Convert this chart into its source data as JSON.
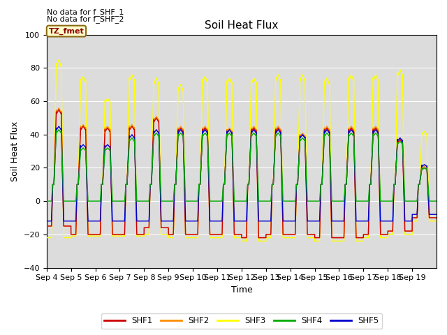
{
  "title": "Soil Heat Flux",
  "ylabel": "Soil Heat Flux",
  "xlabel": "Time",
  "ylim": [
    -40,
    100
  ],
  "annotation1": "No data for f_SHF_1",
  "annotation2": "No data for f_SHF_2",
  "tz_label": "TZ_fmet",
  "legend_labels": [
    "SHF1",
    "SHF2",
    "SHF3",
    "SHF4",
    "SHF5"
  ],
  "line_colors": [
    "#cc0000",
    "#ff8c00",
    "#ffff00",
    "#00aa00",
    "#0000cc"
  ],
  "background_color": "#dcdcdc",
  "xticklabels": [
    "Sep 4",
    "Sep 5",
    "Sep 6",
    "Sep 7",
    "Sep 8",
    "Sep 9",
    "Sep 10",
    "Sep 11",
    "Sep 12",
    "Sep 13",
    "Sep 14",
    "Sep 15",
    "Sep 16",
    "Sep 17",
    "Sep 18",
    "Sep 19"
  ],
  "num_days": 16,
  "points_per_day": 288,
  "shf1_peaks": [
    55,
    45,
    44,
    45,
    50,
    44,
    44,
    43,
    44,
    44,
    40,
    44,
    44,
    44,
    37,
    20
  ],
  "shf2_peaks": [
    56,
    46,
    45,
    46,
    51,
    45,
    45,
    44,
    45,
    45,
    41,
    45,
    45,
    45,
    38,
    21
  ],
  "shf3_peaks": [
    85,
    75,
    62,
    76,
    74,
    70,
    75,
    74,
    74,
    76,
    76,
    74,
    76,
    76,
    79,
    42
  ],
  "shf4_peaks": [
    43,
    32,
    32,
    38,
    41,
    41,
    41,
    41,
    41,
    41,
    38,
    41,
    41,
    41,
    36,
    20
  ],
  "shf5_peaks": [
    45,
    34,
    34,
    40,
    43,
    43,
    43,
    43,
    43,
    43,
    40,
    43,
    43,
    43,
    38,
    22
  ],
  "shf1_nights": [
    -15,
    -20,
    -20,
    -20,
    -16,
    -20,
    -20,
    -20,
    -22,
    -20,
    -20,
    -22,
    -22,
    -20,
    -18,
    -10
  ],
  "shf2_nights": [
    -15,
    -20,
    -20,
    -20,
    -16,
    -20,
    -20,
    -20,
    -22,
    -20,
    -20,
    -22,
    -22,
    -20,
    -18,
    -10
  ],
  "shf3_nights": [
    -22,
    -21,
    -21,
    -21,
    -20,
    -22,
    -22,
    -22,
    -24,
    -22,
    -22,
    -24,
    -24,
    -22,
    -20,
    -12
  ],
  "shf4_nights": [
    0,
    0,
    0,
    0,
    0,
    0,
    0,
    0,
    0,
    0,
    0,
    0,
    0,
    0,
    0,
    0
  ],
  "shf5_nights": [
    -12,
    -12,
    -12,
    -12,
    -12,
    -12,
    -12,
    -12,
    -12,
    -12,
    -12,
    -12,
    -12,
    -12,
    -12,
    -8
  ]
}
